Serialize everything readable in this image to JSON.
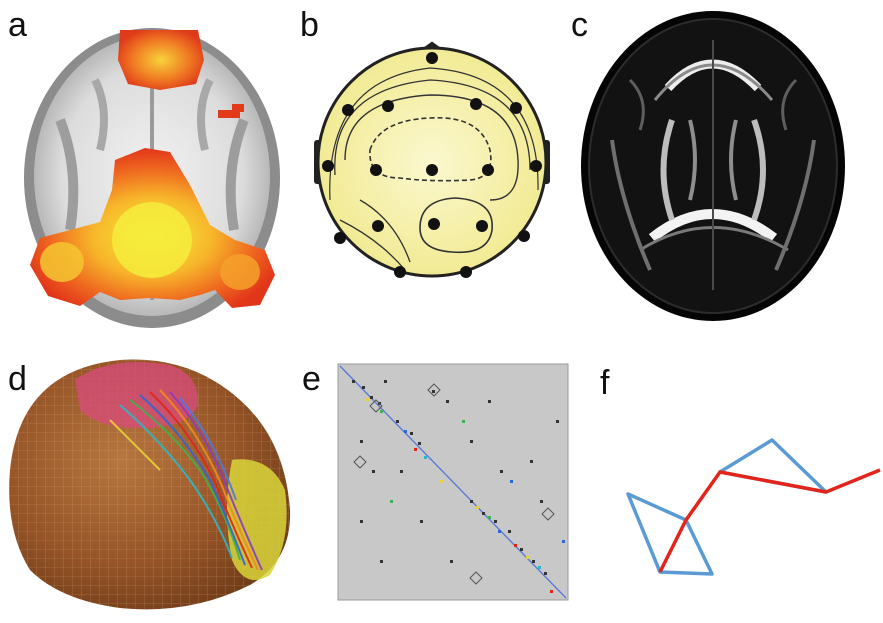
{
  "panels": [
    {
      "label": "a"
    },
    {
      "label": "b"
    },
    {
      "label": "c"
    },
    {
      "label": "d"
    },
    {
      "label": "e"
    },
    {
      "label": "f"
    }
  ],
  "colors": {
    "fmri_hot_outer": "#e8401c",
    "fmri_hot_mid": "#f57a1f",
    "fmri_hot_core": "#f2e32c",
    "brain_gray": "#b9b9b9",
    "eeg_head_fill": "#f7f3b0",
    "dti_background": "#000000",
    "matrix_background": "#c8c8c8",
    "graph_blue": "#5b9bd5",
    "graph_red": "#e3241b"
  }
}
